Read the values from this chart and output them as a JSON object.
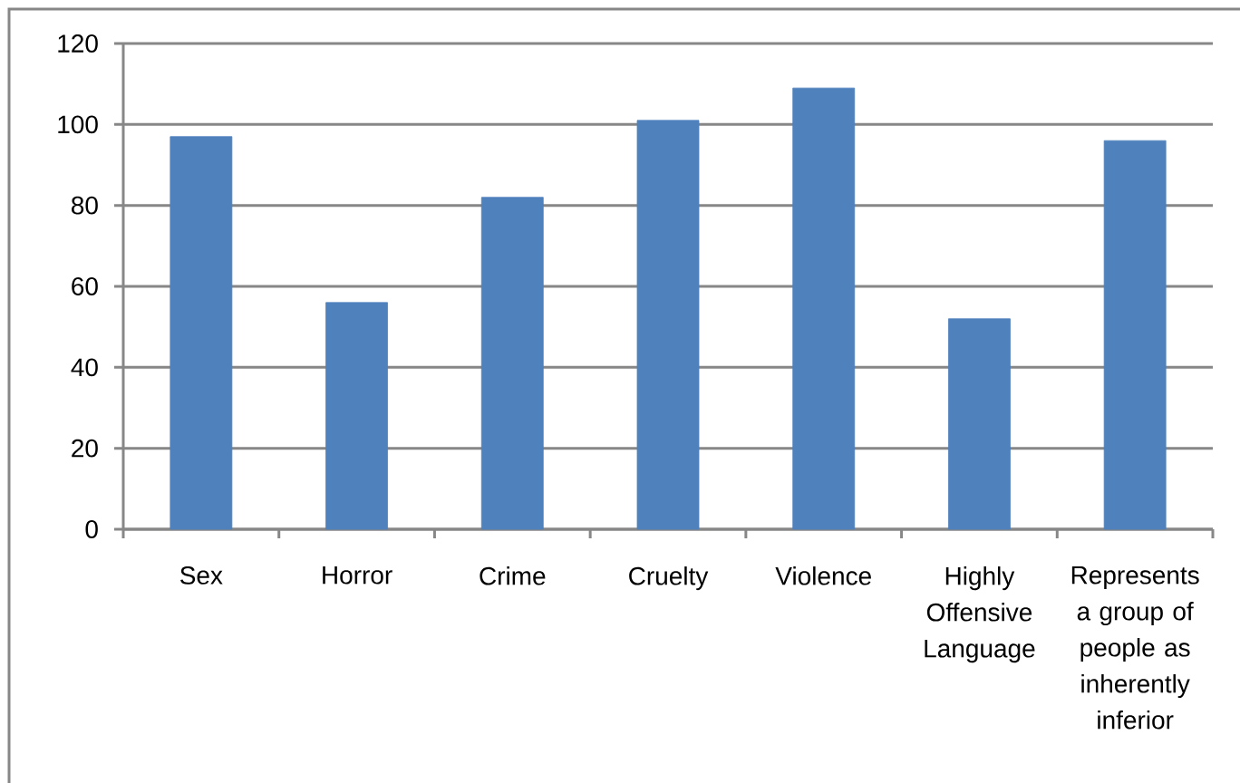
{
  "chart_data": {
    "type": "bar",
    "categories": [
      "Sex",
      "Horror",
      "Crime",
      "Cruelty",
      "Violence",
      "Highly Offensive Language",
      "Represents a group of people as inherently inferior"
    ],
    "values": [
      97,
      56,
      82,
      101,
      109,
      52,
      96
    ],
    "color": "#4f81bd",
    "ylim": [
      0,
      120
    ],
    "yticks": [
      0,
      20,
      40,
      60,
      80,
      100,
      120
    ],
    "grid": "y"
  }
}
